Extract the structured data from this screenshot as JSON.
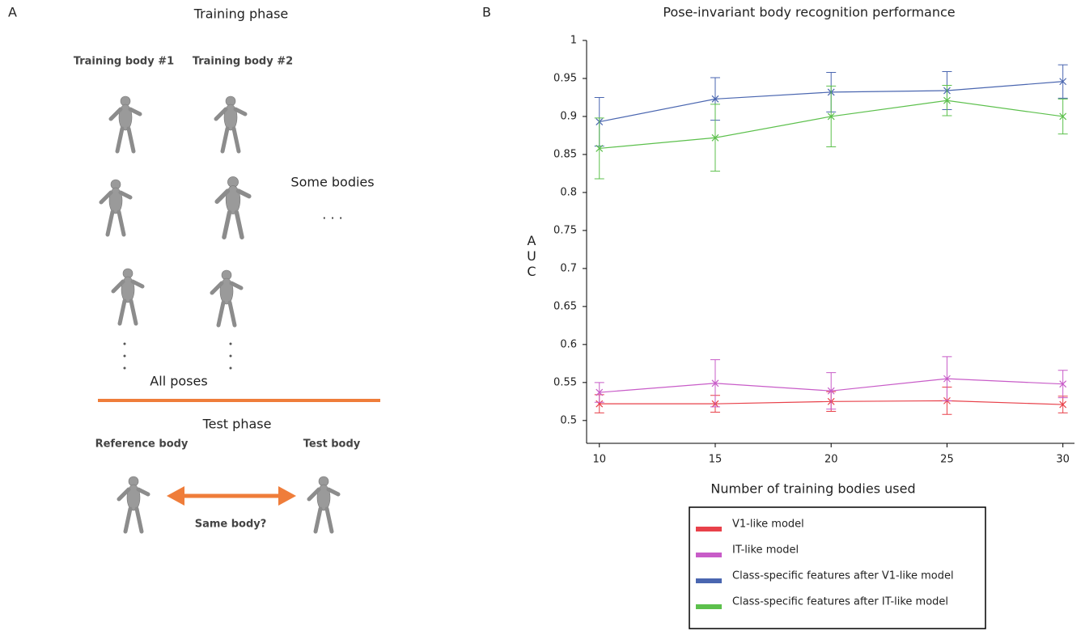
{
  "panel_a": {
    "label": "A",
    "title": "Training phase",
    "columns": [
      "Training body #1",
      "Training body #2"
    ],
    "side_note": "Some bodies",
    "ellipsis": ". . .",
    "footer": "All poses",
    "test_title": "Test phase",
    "reference": "Reference body",
    "test_body": "Test body",
    "question": "Same body?"
  },
  "chart_data": {
    "type": "line",
    "panel_label": "B",
    "title": "Pose-invariant body recognition performance",
    "x_label": "Number of training bodies used",
    "y_label": "AUC",
    "x": [
      10,
      15,
      20,
      25,
      30
    ],
    "xlim": [
      9.45,
      30.5
    ],
    "xticks": [
      10,
      15,
      20,
      25,
      30
    ],
    "ylim": [
      0.47,
      1
    ],
    "yticks": [
      0.5,
      0.55,
      0.6,
      0.65,
      0.7,
      0.75,
      0.8,
      0.85,
      0.9,
      0.95,
      1
    ],
    "series": [
      {
        "name": "V1-like model",
        "color": "#e8414a",
        "values": [
          0.522,
          0.522,
          0.525,
          0.526,
          0.521
        ],
        "errors": [
          0.012,
          0.011,
          0.013,
          0.018,
          0.011
        ]
      },
      {
        "name": "IT-like model",
        "color": "#c85cc8",
        "values": [
          0.537,
          0.549,
          0.539,
          0.555,
          0.548
        ],
        "errors": [
          0.013,
          0.031,
          0.024,
          0.029,
          0.018
        ]
      },
      {
        "name": "Class-specific features after V1-like model",
        "color": "#4a66b0",
        "values": [
          0.893,
          0.923,
          0.932,
          0.934,
          0.946
        ],
        "errors": [
          0.032,
          0.028,
          0.026,
          0.025,
          0.022
        ]
      },
      {
        "name": "Class-specific features after IT-like model",
        "color": "#5cc04c",
        "values": [
          0.858,
          0.872,
          0.9,
          0.921,
          0.9
        ],
        "errors": [
          0.04,
          0.044,
          0.04,
          0.02,
          0.023
        ]
      }
    ]
  }
}
